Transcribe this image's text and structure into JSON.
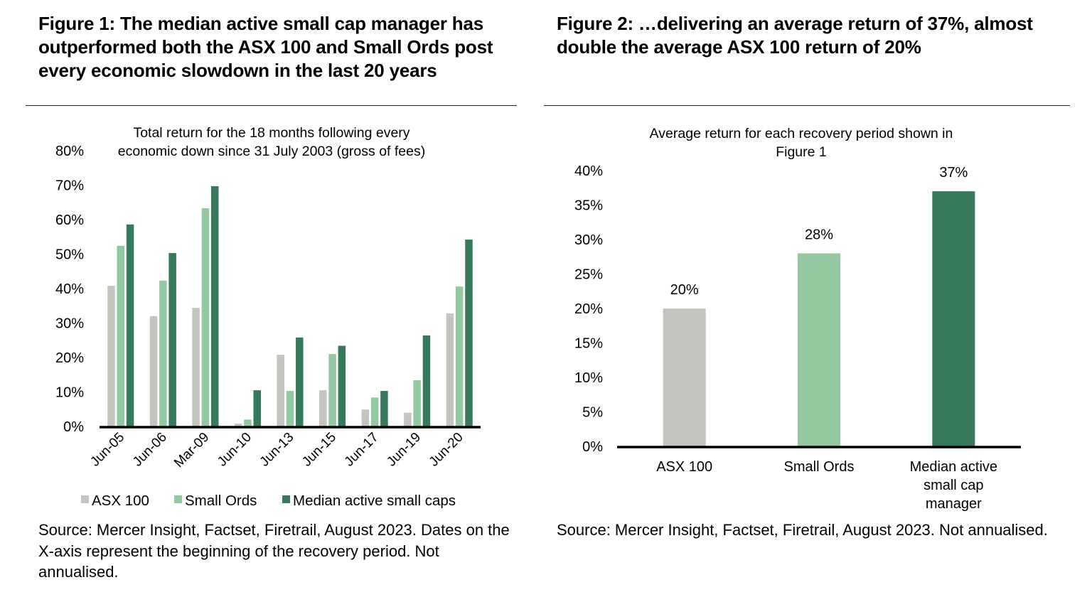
{
  "figure1": {
    "title": "Figure 1: The median active small cap manager has outperformed both the ASX 100 and Small Ords post every economic slowdown in the last 20 years",
    "source": "Source: Mercer Insight, Factset, Firetrail, August 2023. Dates on the X-axis represent the beginning of the recovery period. Not annualised."
  },
  "figure2": {
    "title": "Figure 2: …delivering an average return of 37%, almost double the average ASX 100 return of 20%",
    "source": "Source: Mercer Insight, Factset, Firetrail, August 2023. Not annualised."
  },
  "colors": {
    "asx100": "#C4C5BE",
    "small_ords": "#93C9A0",
    "median": "#367A5B",
    "axis": "#000000"
  },
  "chart_data": [
    {
      "type": "bar",
      "title": [
        "Total return for the 18 months following every",
        "economic down since 31 July 2003 (gross of fees)"
      ],
      "xlabel": "",
      "ylabel": "",
      "ylim": [
        0,
        80
      ],
      "yticks": [
        0,
        10,
        20,
        30,
        40,
        50,
        60,
        70,
        80
      ],
      "ytick_labels": [
        "0%",
        "10%",
        "20%",
        "30%",
        "40%",
        "50%",
        "60%",
        "70%",
        "80%"
      ],
      "grid": false,
      "legend_position": "bottom",
      "categories": [
        "Jun-05",
        "Jun-06",
        "Mar-09",
        "Jun-10",
        "Jun-13",
        "Jun-15",
        "Jun-17",
        "Jun-19",
        "Jun-20"
      ],
      "series": [
        {
          "name": "ASX 100",
          "color_key": "asx100",
          "values": [
            40.8,
            32.0,
            34.4,
            0.8,
            20.8,
            10.5,
            4.9,
            4.0,
            32.8
          ]
        },
        {
          "name": "Small Ords",
          "color_key": "small_ords",
          "values": [
            52.4,
            42.3,
            63.3,
            2.0,
            10.3,
            21.0,
            8.4,
            13.4,
            40.6
          ]
        },
        {
          "name": "Median active small caps",
          "color_key": "median",
          "values": [
            58.6,
            50.3,
            69.7,
            10.5,
            25.8,
            23.4,
            10.3,
            26.4,
            54.2
          ]
        }
      ]
    },
    {
      "type": "bar",
      "title": [
        "Average return for each recovery period shown in",
        "Figure 1"
      ],
      "xlabel": "",
      "ylabel": "",
      "ylim": [
        0,
        40
      ],
      "yticks": [
        0,
        5,
        10,
        15,
        20,
        25,
        30,
        35,
        40
      ],
      "ytick_labels": [
        "0%",
        "5%",
        "10%",
        "15%",
        "20%",
        "25%",
        "30%",
        "35%",
        "40%"
      ],
      "grid": false,
      "legend_position": "none",
      "categories": [
        [
          "ASX 100"
        ],
        [
          "Small Ords"
        ],
        [
          "Median active",
          "small cap",
          "manager"
        ]
      ],
      "values": [
        20,
        28,
        37
      ],
      "data_labels": [
        "20%",
        "28%",
        "37%"
      ],
      "color_keys": [
        "asx100",
        "small_ords",
        "median"
      ]
    }
  ]
}
